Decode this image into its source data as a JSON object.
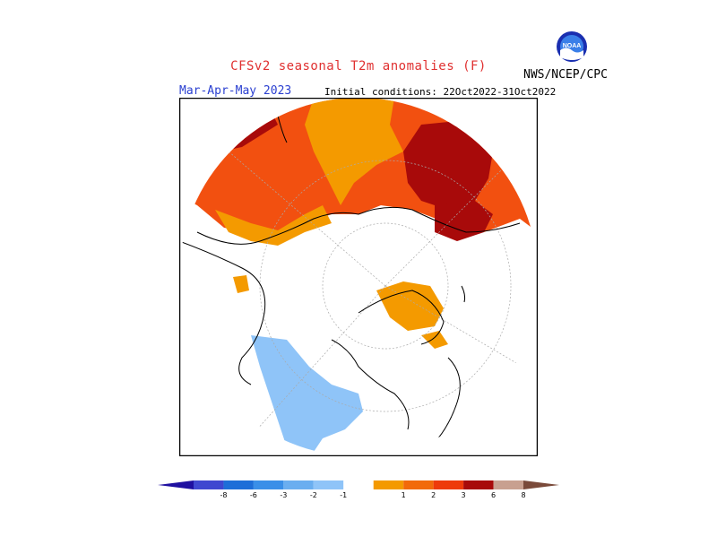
{
  "header": {
    "title": "CFSv2 seasonal T2m anomalies (F)",
    "season": "Mar-Apr-May 2023",
    "initial_conditions": "Initial conditions: 22Oct2022-31Oct2022",
    "agency": "NWS/NCEP/CPC",
    "logo_text": "NOAA"
  },
  "map": {
    "projection": "north-polar-stereographic",
    "variable": "2m temperature anomaly",
    "units": "F"
  },
  "legend": {
    "ticks": [
      "-8",
      "-6",
      "-3",
      "-2",
      "-1",
      "1",
      "2",
      "3",
      "6",
      "8"
    ],
    "colors": [
      "#1f10a0",
      "#3f48d0",
      "#1e6ed8",
      "#3a8fe8",
      "#6aaef0",
      "#8fc4f8",
      "#ffffff",
      "#f49a00",
      "#f26a0a",
      "#ee3a0a",
      "#a80a0a",
      "#c8a090",
      "#7a4a3a"
    ]
  },
  "colors": {
    "orange": "#f49a00",
    "red_orange": "#f25010",
    "red": "#ee3a0a",
    "dark_red": "#a80a0a",
    "light_blue": "#8fc4f8"
  }
}
